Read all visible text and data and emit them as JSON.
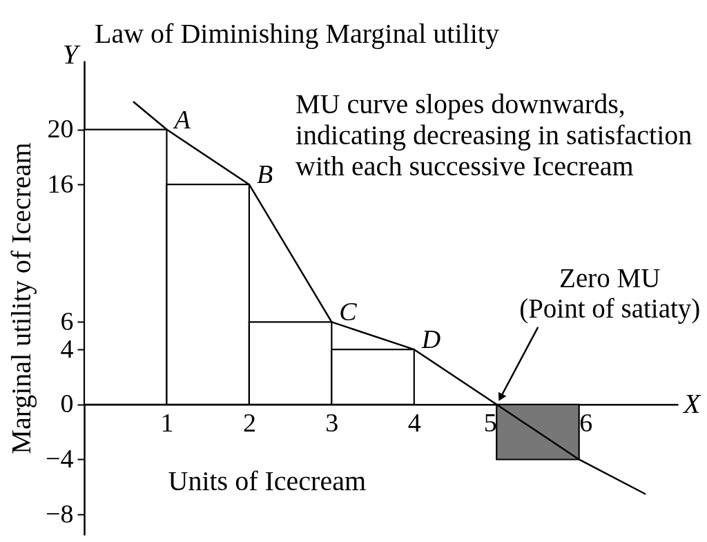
{
  "chart_data": {
    "type": "histogram",
    "title": "Law of Diminishing Marginal utility",
    "xlabel": "Units of Icecream",
    "ylabel": "Marginal utility of Icecream",
    "annotations": [
      "MU curve slopes downwards,\nindicating decreasing in satisfaction\nwith each successive Icecream",
      "Y",
      "X",
      "Zero MU\n(Point of satiaty)",
      {
        "text": "A",
        "x": 1,
        "y": 20
      },
      {
        "text": "B",
        "x": 2,
        "y": 16
      },
      {
        "text": "C",
        "x": 3,
        "y": 6
      },
      {
        "text": "D",
        "x": 4,
        "y": 4
      }
    ],
    "series": [
      {
        "bins": [
          0,
          1,
          2,
          3,
          4,
          5,
          6
        ],
        "values": [
          20,
          16,
          6,
          4,
          null,
          -4
        ],
        "colors": [
          "#ffffff",
          "#ffffff",
          "#ffffff",
          "#ffffff",
          null,
          "#777777"
        ]
      },
      {
        "type": "line",
        "x": [
          0.6,
          1,
          2,
          3,
          4,
          5,
          6,
          6.8
        ],
        "values": [
          22,
          20,
          16,
          6,
          4,
          0,
          -4,
          -6.5
        ],
        "color": "#000000"
      }
    ],
    "xlim": [
      0,
      7.2
    ],
    "ylim": [
      -9.5,
      25
    ],
    "xticks": [
      1,
      2,
      3,
      4,
      5,
      6
    ],
    "yticks": [
      20,
      16,
      6,
      4,
      0,
      -4,
      -8
    ],
    "line_style": "solid"
  }
}
